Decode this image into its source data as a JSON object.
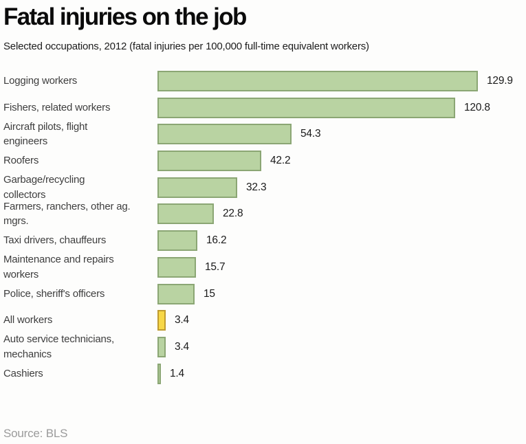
{
  "header": {
    "title": "Fatal injuries on the job",
    "subtitle": "Selected occupations, 2012 (fatal injuries per 100,000 full-time equivalent workers)"
  },
  "footer": {
    "source": "Source: BLS"
  },
  "chart_data": {
    "type": "bar",
    "orientation": "horizontal",
    "title": "Fatal injuries on the job",
    "subtitle": "Selected occupations, 2012 (fatal injuries per 100,000 full-time equivalent workers)",
    "xlim": [
      0,
      140
    ],
    "grid": false,
    "legend": false,
    "categories": [
      "Logging workers",
      "Fishers, related workers",
      "Aircraft pilots, flight engineers",
      "Roofers",
      "Garbage/recycling collectors",
      "Farmers, ranchers, other ag. mgrs.",
      "Taxi drivers, chauffeurs",
      "Maintenance and repairs workers",
      "Police, sheriff's officers",
      "All workers",
      "Auto service technicians, mechanics",
      "Cashiers"
    ],
    "values": [
      129.9,
      120.8,
      54.3,
      42.2,
      32.3,
      22.8,
      16.2,
      15.7,
      15,
      3.4,
      3.4,
      1.4
    ],
    "colors": {
      "bar_fill": "#b9d3a2",
      "bar_border": "#8ba674",
      "highlight_fill": "#f7d747",
      "highlight_border": "#bf9b2f"
    },
    "highlight_category": "All workers",
    "bars": [
      {
        "label_lines": [
          "Logging workers"
        ],
        "value": 129.9,
        "display": "129.9",
        "highlight": false
      },
      {
        "label_lines": [
          "Fishers, related workers"
        ],
        "value": 120.8,
        "display": "120.8",
        "highlight": false
      },
      {
        "label_lines": [
          "Aircraft pilots, flight",
          "engineers"
        ],
        "value": 54.3,
        "display": "54.3",
        "highlight": false
      },
      {
        "label_lines": [
          "Roofers"
        ],
        "value": 42.2,
        "display": "42.2",
        "highlight": false
      },
      {
        "label_lines": [
          "Garbage/recycling",
          "collectors"
        ],
        "value": 32.3,
        "display": "32.3",
        "highlight": false
      },
      {
        "label_lines": [
          "Farmers, ranchers, other ag.",
          "mgrs."
        ],
        "value": 22.8,
        "display": "22.8",
        "highlight": false
      },
      {
        "label_lines": [
          "Taxi drivers, chauffeurs"
        ],
        "value": 16.2,
        "display": "16.2",
        "highlight": false
      },
      {
        "label_lines": [
          "Maintenance and repairs",
          "workers"
        ],
        "value": 15.7,
        "display": "15.7",
        "highlight": false
      },
      {
        "label_lines": [
          "Police, sheriff's officers"
        ],
        "value": 15,
        "display": "15",
        "highlight": false
      },
      {
        "label_lines": [
          "All workers"
        ],
        "value": 3.4,
        "display": "3.4",
        "highlight": true
      },
      {
        "label_lines": [
          "Auto service technicians,",
          "mechanics"
        ],
        "value": 3.4,
        "display": "3.4",
        "highlight": false
      },
      {
        "label_lines": [
          "Cashiers"
        ],
        "value": 1.4,
        "display": "1.4",
        "highlight": false
      }
    ]
  }
}
